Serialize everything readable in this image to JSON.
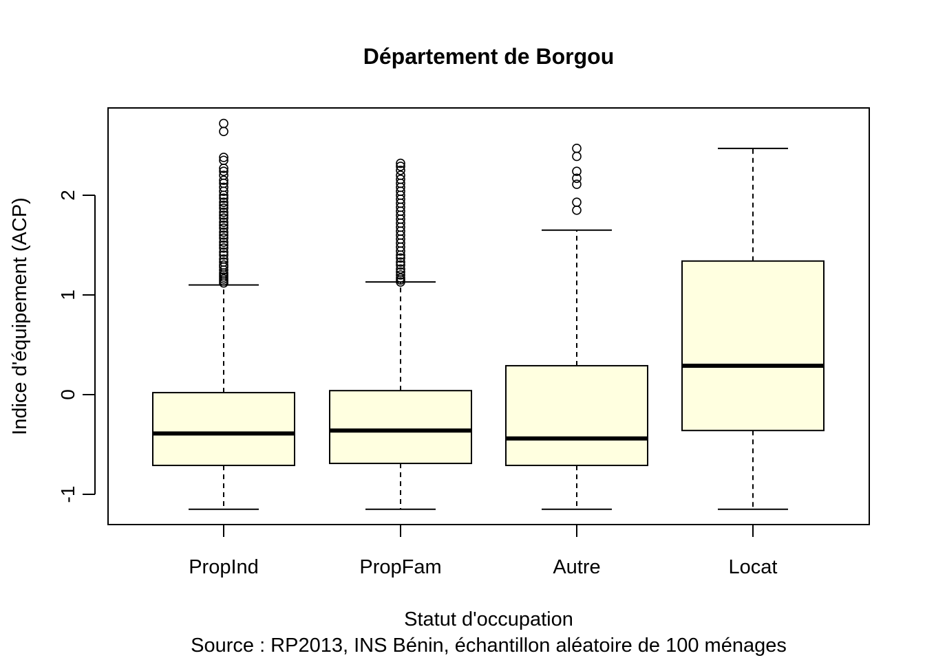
{
  "chart_data": {
    "type": "boxplot",
    "title": "Département de Borgou",
    "xlabel": "Statut d'occupation",
    "caption": "Source : RP2013, INS Bénin, échantillon aléatoire de 100 ménages",
    "ylabel": "Indice d'équipement (ACP)",
    "ylim": [
      -1.3,
      2.88
    ],
    "yticks": [
      -1,
      0,
      1,
      2
    ],
    "grid": false,
    "colors": {
      "box_fill": "#FFFFE0",
      "stroke": "#000000"
    },
    "categories": [
      "PropInd",
      "PropFam",
      "Autre",
      "Locat"
    ],
    "boxes": [
      {
        "name": "PropInd",
        "whisker_low": -1.15,
        "q1": -0.71,
        "median": -0.39,
        "q3": 0.02,
        "whisker_high": 1.1,
        "outliers": [
          1.12,
          1.14,
          1.16,
          1.18,
          1.2,
          1.22,
          1.25,
          1.28,
          1.3,
          1.33,
          1.36,
          1.4,
          1.43,
          1.47,
          1.5,
          1.53,
          1.57,
          1.6,
          1.63,
          1.67,
          1.7,
          1.73,
          1.77,
          1.8,
          1.83,
          1.87,
          1.9,
          1.93,
          1.97,
          2.0,
          2.04,
          2.08,
          2.12,
          2.15,
          2.2,
          2.24,
          2.27,
          2.35,
          2.38,
          2.64,
          2.72
        ]
      },
      {
        "name": "PropFam",
        "whisker_low": -1.15,
        "q1": -0.69,
        "median": -0.36,
        "q3": 0.04,
        "whisker_high": 1.13,
        "outliers": [
          1.13,
          1.15,
          1.17,
          1.2,
          1.23,
          1.26,
          1.3,
          1.33,
          1.37,
          1.4,
          1.44,
          1.48,
          1.52,
          1.56,
          1.6,
          1.64,
          1.68,
          1.72,
          1.76,
          1.8,
          1.84,
          1.88,
          1.92,
          1.96,
          2.0,
          2.04,
          2.08,
          2.12,
          2.16,
          2.2,
          2.25,
          2.29,
          2.32
        ]
      },
      {
        "name": "Autre",
        "whisker_low": -1.15,
        "q1": -0.71,
        "median": -0.44,
        "q3": 0.29,
        "whisker_high": 1.65,
        "outliers": [
          1.85,
          1.93,
          2.11,
          2.17,
          2.24,
          2.39,
          2.47
        ]
      },
      {
        "name": "Locat",
        "whisker_low": -1.15,
        "q1": -0.36,
        "median": 0.29,
        "q3": 1.34,
        "whisker_high": 2.47,
        "outliers": []
      }
    ]
  }
}
